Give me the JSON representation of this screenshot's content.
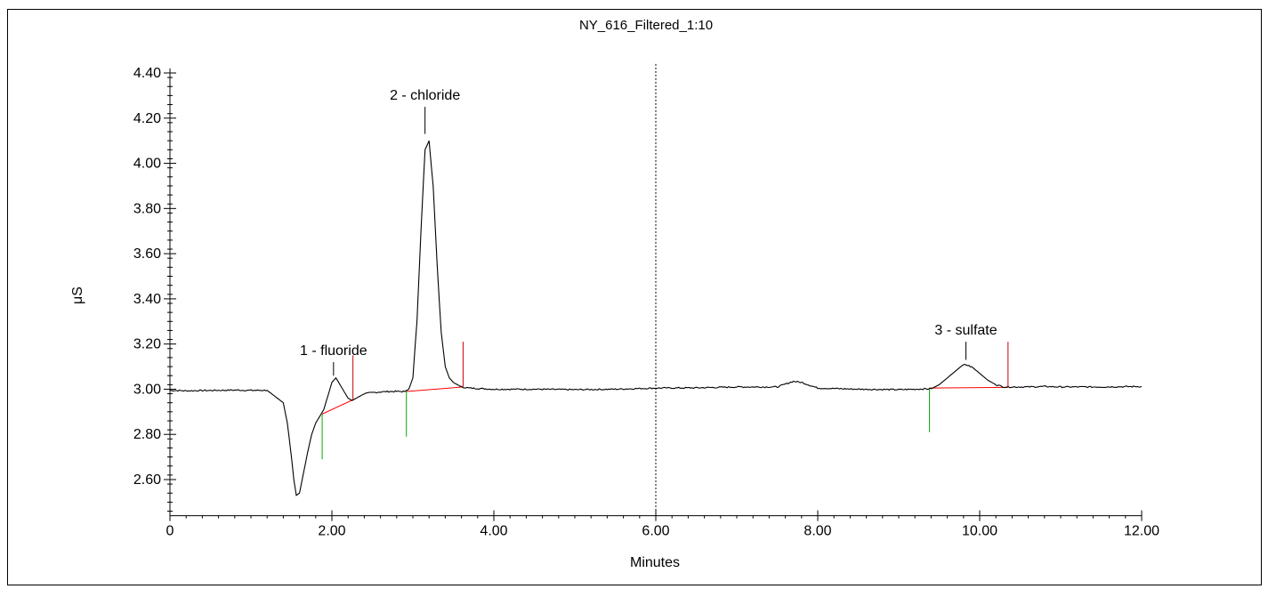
{
  "chart_data": {
    "type": "line",
    "title": "NY_616_Filtered_1:10",
    "xlabel": "Minutes",
    "ylabel": "μS",
    "xlim": [
      0,
      12
    ],
    "ylim": [
      2.44,
      4.42
    ],
    "x_ticks": [
      0,
      2,
      4,
      6,
      8,
      10,
      12
    ],
    "x_tick_labels": [
      "0",
      "2.00",
      "4.00",
      "6.00",
      "8.00",
      "10.00",
      "12.00"
    ],
    "y_ticks": [
      2.6,
      2.8,
      3.0,
      3.2,
      3.4,
      3.6,
      3.8,
      4.0,
      4.2,
      4.4
    ],
    "y_tick_labels": [
      "2.60",
      "2.80",
      "3.00",
      "3.20",
      "3.40",
      "3.60",
      "3.80",
      "4.00",
      "4.20",
      "4.40"
    ],
    "grid": false,
    "vertical_marker_x": 6.0,
    "colors": {
      "trace": "#000000",
      "baseline": "#ff0000",
      "peak_start": "#00aa00",
      "peak_end": "#cc0000"
    },
    "series": [
      {
        "x": [
          0,
          0.2,
          0.4,
          0.6,
          0.8,
          1.0,
          1.2,
          1.4,
          1.45,
          1.5,
          1.53,
          1.56,
          1.6,
          1.65,
          1.7,
          1.75,
          1.8,
          1.85,
          1.9,
          1.95,
          2.0,
          2.05,
          2.1,
          2.15,
          2.2,
          2.25,
          2.3,
          2.4,
          2.5,
          2.6,
          2.7,
          2.8,
          2.9,
          2.95,
          3.0,
          3.05,
          3.1,
          3.15,
          3.2,
          3.25,
          3.3,
          3.35,
          3.4,
          3.45,
          3.5,
          3.55,
          3.6,
          3.7,
          4.0,
          4.5,
          5.0,
          5.5,
          6.0,
          6.5,
          7.0,
          7.5,
          7.7,
          7.8,
          8.0,
          8.5,
          9.0,
          9.4,
          9.5,
          9.6,
          9.7,
          9.8,
          9.9,
          10.0,
          10.1,
          10.2,
          10.3,
          10.4,
          10.6,
          10.8,
          11.0,
          11.5,
          12.0
        ],
        "y": [
          2.995,
          2.993,
          2.994,
          2.995,
          2.996,
          2.995,
          2.995,
          2.94,
          2.85,
          2.7,
          2.6,
          2.53,
          2.54,
          2.63,
          2.72,
          2.8,
          2.85,
          2.88,
          2.91,
          2.97,
          3.03,
          3.05,
          3.02,
          2.99,
          2.96,
          2.95,
          2.96,
          2.98,
          2.985,
          2.988,
          2.99,
          2.99,
          2.99,
          3.0,
          3.05,
          3.3,
          3.7,
          4.06,
          4.1,
          3.9,
          3.55,
          3.25,
          3.1,
          3.05,
          3.03,
          3.02,
          3.01,
          3.005,
          3.0,
          3.0,
          2.998,
          3.0,
          3.005,
          3.006,
          3.01,
          3.01,
          3.035,
          3.03,
          3.005,
          3.0,
          2.998,
          3.002,
          3.02,
          3.05,
          3.08,
          3.11,
          3.1,
          3.07,
          3.04,
          3.02,
          3.01,
          3.01,
          3.01,
          3.012,
          3.01,
          3.01,
          3.012
        ]
      }
    ],
    "baselines": [
      {
        "x": [
          1.88,
          2.27
        ],
        "y": [
          2.89,
          2.955
        ]
      },
      {
        "x": [
          2.92,
          3.62
        ],
        "y": [
          2.99,
          3.01
        ]
      },
      {
        "x": [
          9.38,
          10.35
        ],
        "y": [
          3.005,
          3.008
        ]
      }
    ],
    "peak_start_markers": [
      {
        "x": 1.88,
        "y_top": 2.89,
        "y_bottom": 2.69
      },
      {
        "x": 2.92,
        "y_top": 2.99,
        "y_bottom": 2.79
      },
      {
        "x": 9.38,
        "y_top": 3.0,
        "y_bottom": 2.81
      }
    ],
    "peak_end_markers": [
      {
        "x": 2.26,
        "y_top": 3.15,
        "y_bottom": 2.955
      },
      {
        "x": 3.62,
        "y_top": 3.21,
        "y_bottom": 3.01
      },
      {
        "x": 10.35,
        "y_top": 3.21,
        "y_bottom": 3.008
      }
    ],
    "peak_labels": [
      {
        "text": "1 - fluoride",
        "x": 2.02,
        "y_tick_top": 3.12,
        "y_tick_bottom": 3.06
      },
      {
        "text": "2 - chloride",
        "x": 3.15,
        "y_tick_top": 4.25,
        "y_tick_bottom": 4.13
      },
      {
        "text": "3 - sulfate",
        "x": 9.83,
        "y_tick_top": 3.21,
        "y_tick_bottom": 3.13
      }
    ]
  }
}
